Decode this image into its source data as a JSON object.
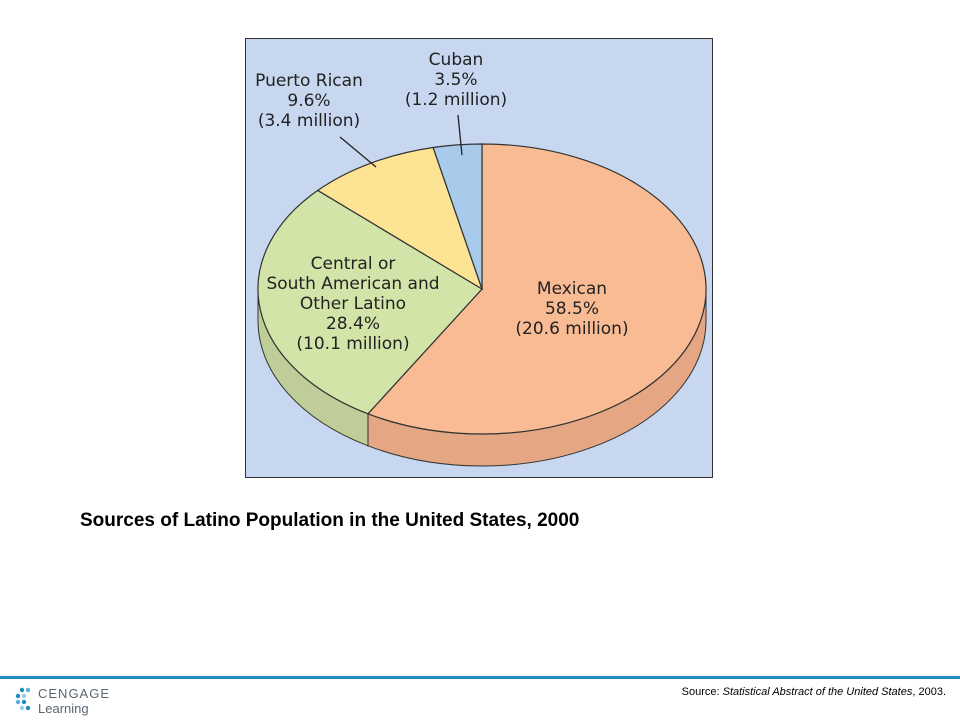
{
  "chart_data": {
    "type": "pie",
    "title": "Sources of Latino Population in the United States, 2000",
    "unit": "percent",
    "slices": [
      {
        "name": "Mexican",
        "value": 58.5,
        "count_label": "(20.6 million)",
        "color": "#f9bb93",
        "side_color": "#e4a683"
      },
      {
        "name": "Central or South American and Other Latino",
        "value": 28.4,
        "count_label": "(10.1 million)",
        "color": "#d2e4a8",
        "side_color": "#bfce98"
      },
      {
        "name": "Puerto Rican",
        "value": 9.6,
        "count_label": "(3.4 million)",
        "color": "#fde394",
        "side_color": "#e6cc84"
      },
      {
        "name": "Cuban",
        "value": 3.5,
        "count_label": "(1.2 million)",
        "color": "#a8cbec",
        "side_color": "#94b6d8"
      }
    ]
  },
  "labels": {
    "mexican": [
      "Mexican",
      "58.5%",
      "(20.6 million)"
    ],
    "central": [
      "Central or",
      "South American and",
      "Other Latino",
      "28.4%",
      "(10.1 million)"
    ],
    "puerto_rican": [
      "Puerto Rican",
      "9.6%",
      "(3.4 million)"
    ],
    "cuban": [
      "Cuban",
      "3.5%",
      "(1.2 million)"
    ]
  },
  "footer": {
    "logo_line1": "CENGAGE",
    "logo_line2": "Learning",
    "source_prefix": "Source: ",
    "source_title": "Statistical Abstract of the United States",
    "source_suffix": ", 2003."
  },
  "colors": {
    "panel_background": "#c7d7ef",
    "accent_bar": "#1e8bc3"
  }
}
